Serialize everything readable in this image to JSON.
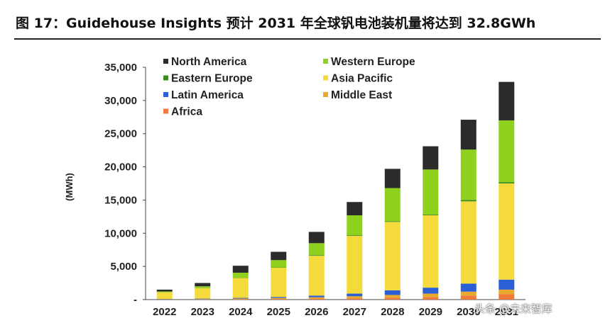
{
  "figure_title": "图 17：Guidehouse Insights 预计 2031 年全球钒电池装机量将达到 32.8GWh",
  "watermark": "头条 @未来智库",
  "colors": {
    "North America": "#2b2b2b",
    "Western Europe": "#8fd11f",
    "Eastern Europe": "#3c8c1e",
    "Asia Pacific": "#f5da3c",
    "Latin America": "#2a5fd6",
    "Middle East": "#e9a92c",
    "Africa": "#f07a3a"
  },
  "chart_data": {
    "type": "bar",
    "stacked": true,
    "title": "",
    "xlabel": "",
    "ylabel": "(MWh)",
    "ylim": [
      0,
      35000
    ],
    "yticks": [
      0,
      5000,
      10000,
      15000,
      20000,
      25000,
      30000,
      35000
    ],
    "ytick_labels": [
      "-",
      "5,000",
      "10,000",
      "15,000",
      "20,000",
      "25,000",
      "30,000",
      "35,000"
    ],
    "categories": [
      "2022",
      "2023",
      "2024",
      "2025",
      "2026",
      "2027",
      "2028",
      "2029",
      "2030",
      "2031"
    ],
    "legend_position": "top-left",
    "series": [
      {
        "name": "Africa",
        "values": [
          20,
          30,
          60,
          100,
          150,
          200,
          300,
          400,
          600,
          800
        ]
      },
      {
        "name": "Middle East",
        "values": [
          40,
          60,
          100,
          150,
          200,
          300,
          400,
          500,
          600,
          700
        ]
      },
      {
        "name": "Latin America",
        "values": [
          40,
          60,
          100,
          150,
          250,
          400,
          700,
          900,
          1200,
          1500
        ]
      },
      {
        "name": "Asia Pacific",
        "values": [
          1000,
          1550,
          3000,
          4400,
          6000,
          8700,
          10300,
          10900,
          12400,
          14500
        ]
      },
      {
        "name": "Eastern Europe",
        "values": [
          10,
          20,
          40,
          50,
          100,
          100,
          100,
          100,
          200,
          200
        ]
      },
      {
        "name": "Western Europe",
        "values": [
          120,
          280,
          750,
          1100,
          1800,
          3000,
          5000,
          6800,
          7600,
          9300
        ]
      },
      {
        "name": "North America",
        "values": [
          270,
          500,
          1050,
          1250,
          1700,
          2000,
          2900,
          3500,
          4500,
          5800
        ]
      }
    ],
    "legend_order": [
      "North America",
      "Western Europe",
      "Eastern Europe",
      "Asia Pacific",
      "Latin America",
      "Middle East",
      "Africa"
    ]
  }
}
